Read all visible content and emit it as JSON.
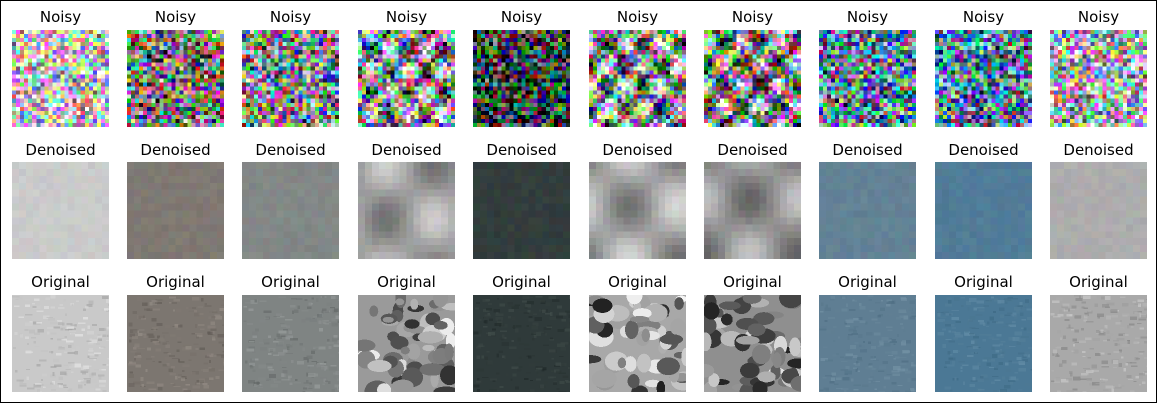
{
  "rows": [
    {
      "kind": "noisy",
      "titles": [
        "Noisy",
        "Noisy",
        "Noisy",
        "Noisy",
        "Noisy",
        "Noisy",
        "Noisy",
        "Noisy",
        "Noisy",
        "Noisy"
      ]
    },
    {
      "kind": "denoised",
      "titles": [
        "Denoised",
        "Denoised",
        "Denoised",
        "Denoised",
        "Denoised",
        "Denoised",
        "Denoised",
        "Denoised",
        "Denoised",
        "Denoised"
      ]
    },
    {
      "kind": "original",
      "titles": [
        "Original",
        "Original",
        "Original",
        "Original",
        "Original",
        "Original",
        "Original",
        "Original",
        "Original",
        "Original"
      ]
    }
  ],
  "samples": [
    {
      "base": "#c9c9c9",
      "dark": "#9a9a9a",
      "light": "#ededed",
      "rocky": false
    },
    {
      "base": "#7c7670",
      "dark": "#5a5550",
      "light": "#9d958e",
      "rocky": false
    },
    {
      "base": "#7f8483",
      "dark": "#5e6362",
      "light": "#a1a6a5",
      "rocky": false
    },
    {
      "base": "#9a9a9a",
      "dark": "#2e2e2e",
      "light": "#f0f0f0",
      "rocky": true
    },
    {
      "base": "#2f3a3a",
      "dark": "#1c2525",
      "light": "#46524f",
      "rocky": false
    },
    {
      "base": "#a8a8a8",
      "dark": "#1a1a1a",
      "light": "#f5f5f5",
      "rocky": true
    },
    {
      "base": "#8f8f8f",
      "dark": "#222222",
      "light": "#e6e6e6",
      "rocky": true
    },
    {
      "base": "#5f7e93",
      "dark": "#4a6a80",
      "light": "#7a98ab",
      "rocky": false
    },
    {
      "base": "#4b7895",
      "dark": "#3a6580",
      "light": "#6a93ad",
      "rocky": false
    },
    {
      "base": "#a9a9a9",
      "dark": "#7b7b7b",
      "light": "#d4d4d4",
      "rocky": false
    }
  ]
}
